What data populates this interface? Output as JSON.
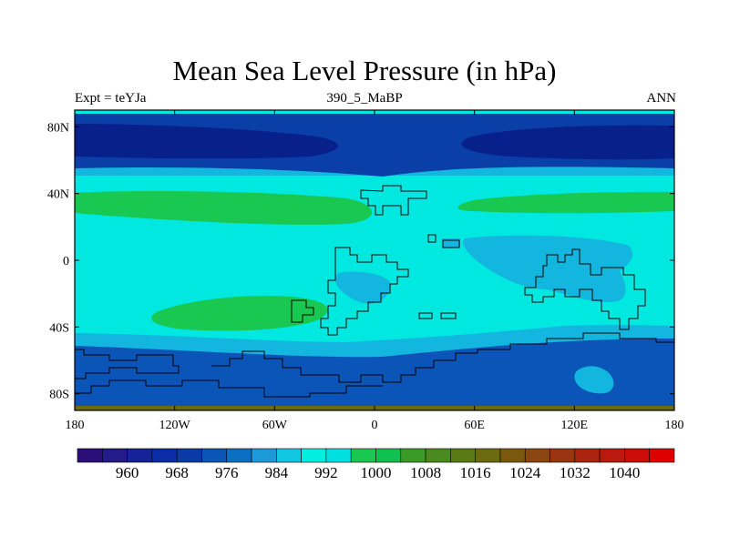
{
  "title": "Mean Sea Level Pressure (in hPa)",
  "subtitle_left": "Expt = teYJa",
  "subtitle_center": "390_5_MaBP",
  "subtitle_right": "ANN",
  "map": {
    "lat_labels": [
      "80N",
      "40N",
      "0",
      "40S",
      "80S"
    ],
    "lat_values": [
      80,
      40,
      0,
      -40,
      -80
    ],
    "lon_labels": [
      "180",
      "120W",
      "60W",
      "0",
      "60E",
      "120E",
      "180"
    ],
    "lon_values": [
      -180,
      -120,
      -60,
      0,
      60,
      120,
      180
    ]
  },
  "colorbar": {
    "labels": [
      "960",
      "968",
      "976",
      "984",
      "992",
      "1000",
      "1008",
      "1016",
      "1024",
      "1032",
      "1040"
    ],
    "colors": [
      "#2a0f78",
      "#241a8a",
      "#16229a",
      "#0b2ca8",
      "#0a3aa8",
      "#0b55b8",
      "#0b70c4",
      "#1a9ad6",
      "#12c8e0",
      "#00eedd",
      "#00e0e0",
      "#19c850",
      "#10c050",
      "#3c9a2a",
      "#4b8a1e",
      "#5a7a16",
      "#6b6a10",
      "#7a5810",
      "#8a4610",
      "#9a3410",
      "#aa2410",
      "#bb1810",
      "#cc0c08",
      "#dd0000"
    ]
  }
}
